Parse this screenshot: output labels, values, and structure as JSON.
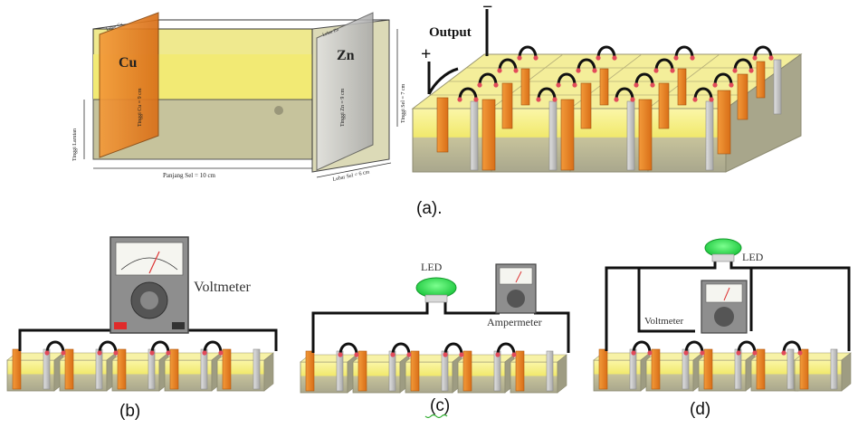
{
  "panel_a": {
    "cell": {
      "electrode_cu": "Cu",
      "electrode_zn": "Zn",
      "dim_length": "Panjang Sel  = 10 cm",
      "dim_width": "Lebar Sel = 6 cm",
      "dim_height": "Tinggi Sel = 7 cm",
      "dim_cu_height": "Tinggi Cu = 9 cm",
      "dim_zn_height": "Tinggi Zn = 9 cm",
      "dim_cu_width": "Lebar Cu",
      "dim_zn_width": "Lebar Zn",
      "dim_solution": "Tinggi Larutan"
    },
    "array": {
      "output_label": "Output",
      "minus_sign": "−",
      "plus_sign": "+"
    },
    "caption": "(a)."
  },
  "panel_b": {
    "meter_label": "Voltmeter",
    "caption": "(b)"
  },
  "panel_c": {
    "led_label": "LED",
    "meter_label": "Ampermeter",
    "caption": "(c)"
  },
  "panel_d": {
    "led_label": "LED",
    "meter_label": "Voltmeter",
    "caption": "(d)"
  },
  "colors": {
    "copper": "#e8862a",
    "zinc": "#c9c9c9",
    "electrolyte": "#f5ef86",
    "cell_body": "#b7b79a",
    "wire": "#111111",
    "led": "#27e04b"
  }
}
